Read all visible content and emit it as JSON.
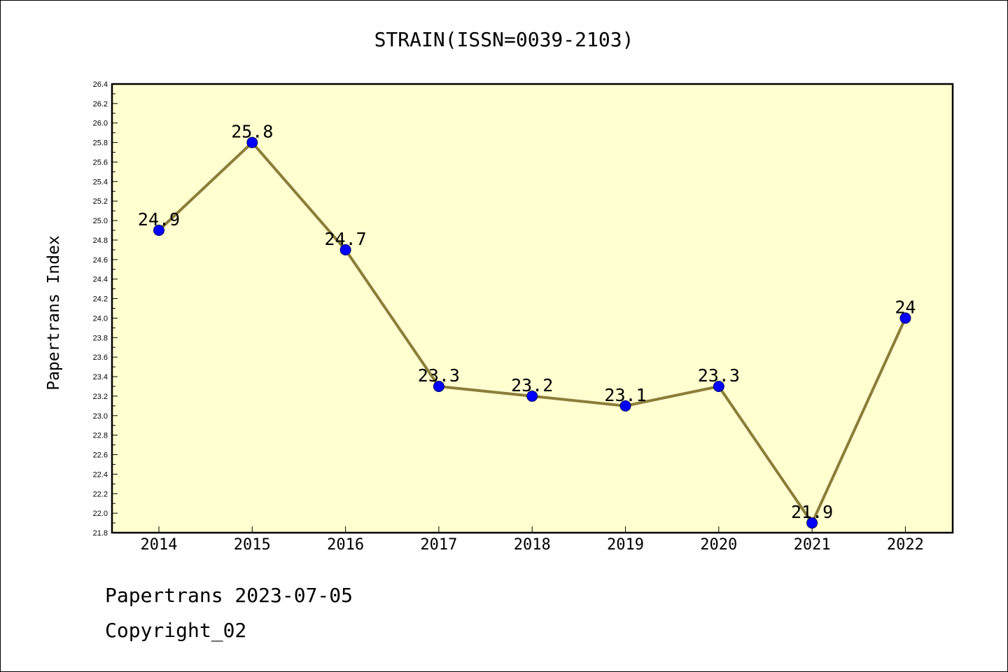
{
  "chart_data": {
    "type": "line",
    "title": "STRAIN(ISSN=0039-2103)",
    "xlabel": "",
    "ylabel": "Papertrans Index",
    "categories": [
      "2014",
      "2015",
      "2016",
      "2017",
      "2018",
      "2019",
      "2020",
      "2021",
      "2022"
    ],
    "series": [
      {
        "values": [
          24.9,
          25.8,
          24.7,
          23.3,
          23.2,
          23.1,
          23.3,
          21.9,
          24.0
        ]
      }
    ],
    "data_labels": [
      "24.9",
      "25.8",
      "24.7",
      "23.3",
      "23.2",
      "23.1",
      "23.3",
      "21.9",
      "24"
    ],
    "ylim": [
      21.8,
      26.4
    ],
    "yticks": [
      "21.8",
      "22.0",
      "22.2",
      "22.4",
      "22.6",
      "22.8",
      "23.0",
      "23.2",
      "23.4",
      "23.6",
      "23.8",
      "24.0",
      "24.2",
      "24.4",
      "24.6",
      "24.8",
      "25.0",
      "25.2",
      "25.4",
      "25.6",
      "25.8",
      "26.0",
      "26.2",
      "26.4"
    ],
    "grid": false,
    "colors": {
      "plot_background": "#ffffd0",
      "line": "#8b7d3a",
      "marker": "#0000ff"
    }
  },
  "footer": {
    "line1": "Papertrans 2023-07-05",
    "line2": "Copyright_02"
  }
}
